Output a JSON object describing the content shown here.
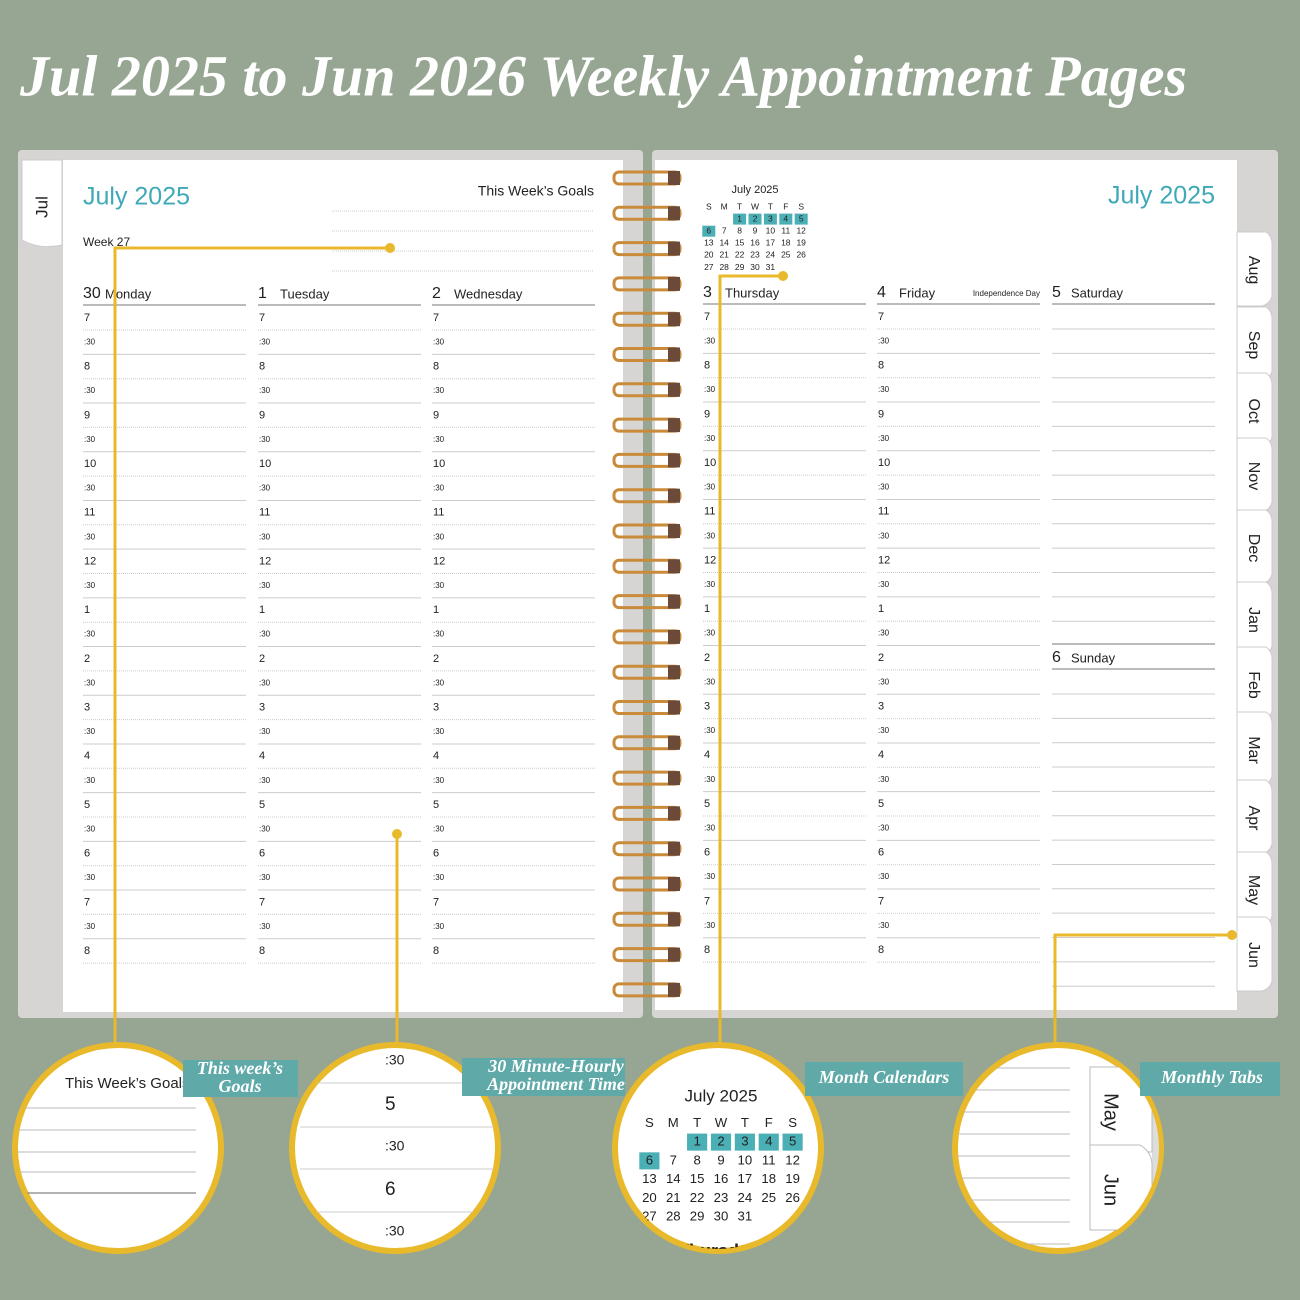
{
  "title": "Jul 2025 to Jun 2026 Weekly Appointment Pages",
  "left_page": {
    "tab": "Jul",
    "month": "July 2025",
    "goals_label": "This Week’s Goals",
    "week": "Week 27",
    "days": [
      {
        "date": "30",
        "name": "Monday"
      },
      {
        "date": "1",
        "name": "Tuesday"
      },
      {
        "date": "2",
        "name": "Wednesday"
      }
    ]
  },
  "right_page": {
    "month": "July 2025",
    "days": [
      {
        "date": "3",
        "name": "Thursday"
      },
      {
        "date": "4",
        "name": "Friday",
        "note": "Independence Day"
      },
      {
        "date": "5",
        "name": "Saturday"
      },
      {
        "date": "6",
        "name": "Sunday"
      }
    ],
    "tabs": [
      "Aug",
      "Sep",
      "Oct",
      "Nov",
      "Dec",
      "Jan",
      "Feb",
      "Mar",
      "Apr",
      "May",
      "Jun"
    ]
  },
  "times": [
    "7",
    ":30",
    "8",
    ":30",
    "9",
    ":30",
    "10",
    ":30",
    "11",
    ":30",
    "12",
    ":30",
    "1",
    ":30",
    "2",
    ":30",
    "3",
    ":30",
    "4",
    ":30",
    "5",
    ":30",
    "6",
    ":30",
    "7",
    ":30",
    "8"
  ],
  "mini_calendar": {
    "title": "July 2025",
    "weekdays": [
      "S",
      "M",
      "T",
      "W",
      "T",
      "F",
      "S"
    ],
    "weeks": [
      [
        null,
        null,
        "1",
        "2",
        "3",
        "4",
        "5"
      ],
      [
        "6",
        "7",
        "8",
        "9",
        "10",
        "11",
        "12"
      ],
      [
        "13",
        "14",
        "15",
        "16",
        "17",
        "18",
        "19"
      ],
      [
        "20",
        "21",
        "22",
        "23",
        "24",
        "25",
        "26"
      ],
      [
        "27",
        "28",
        "29",
        "30",
        "31",
        null,
        null
      ]
    ],
    "highlighted": [
      "1",
      "2",
      "3",
      "4",
      "5",
      "6"
    ]
  },
  "callouts": [
    {
      "lines": [
        "This week’s",
        "Goals"
      ]
    },
    {
      "lines": [
        "30 Minute-Hourly",
        "Appointment Time"
      ]
    },
    {
      "lines": [
        "Month Calendars"
      ]
    },
    {
      "lines": [
        "Monthly Tabs"
      ]
    }
  ]
}
